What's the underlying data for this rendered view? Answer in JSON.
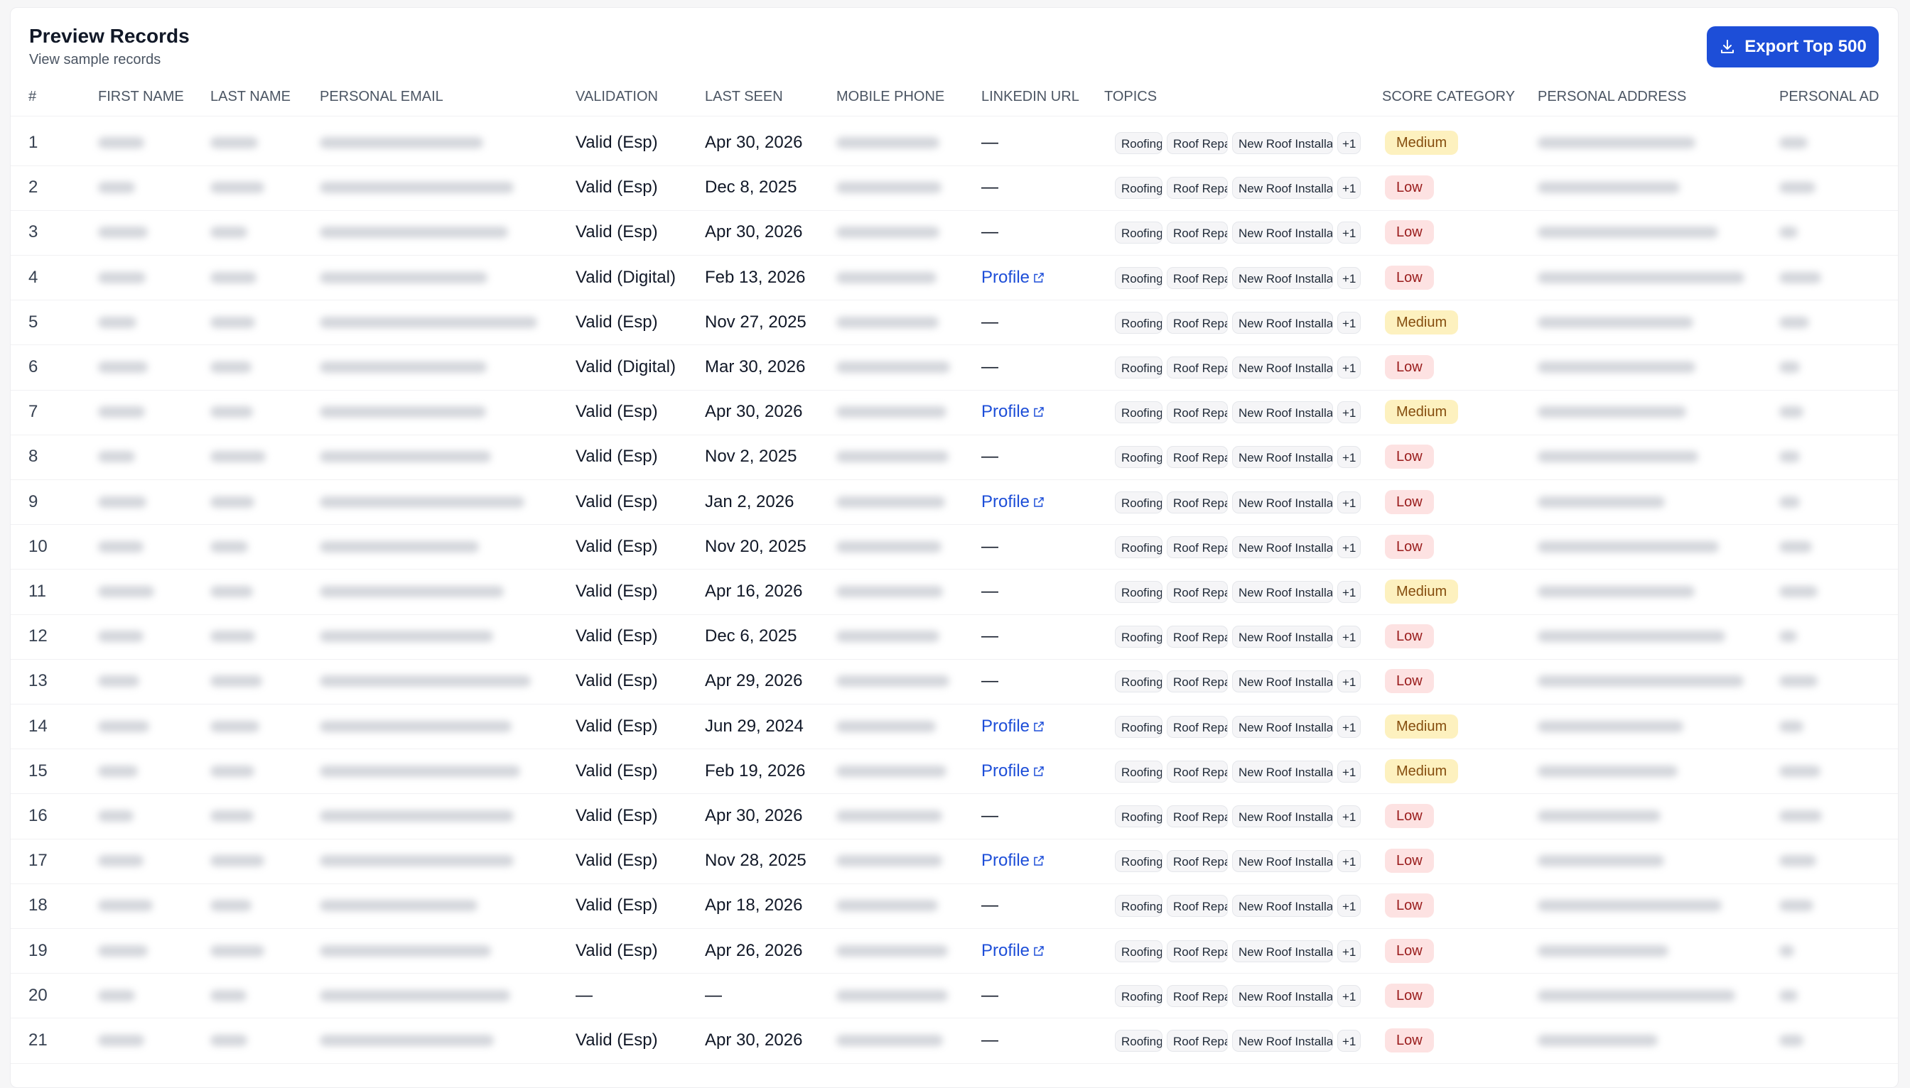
{
  "header": {
    "title": "Preview Records",
    "subtitle": "View sample records",
    "export_button": "Export Top 500"
  },
  "table": {
    "columns": [
      "#",
      "FIRST NAME",
      "LAST NAME",
      "PERSONAL EMAIL",
      "VALIDATION",
      "LAST SEEN",
      "MOBILE PHONE",
      "LINKEDIN URL",
      "TOPICS",
      "SCORE CATEGORY",
      "PERSONAL ADDRESS",
      "PERSONAL AD"
    ],
    "rows": [
      {
        "number": 1,
        "validation": "Valid (Esp)",
        "last_seen": "Apr 30, 2026",
        "linkedin": "—",
        "topics": [
          "Roofing",
          "Roof Repair",
          "New Roof Installation"
        ],
        "topics_more": "+1",
        "score": "Medium"
      },
      {
        "number": 2,
        "validation": "Valid (Esp)",
        "last_seen": "Dec 8, 2025",
        "linkedin": "—",
        "topics": [
          "Roofing",
          "Roof Repair",
          "New Roof Installation"
        ],
        "topics_more": "+1",
        "score": "Low"
      },
      {
        "number": 3,
        "validation": "Valid (Esp)",
        "last_seen": "Apr 30, 2026",
        "linkedin": "—",
        "topics": [
          "Roofing",
          "Roof Repair",
          "New Roof Installation"
        ],
        "topics_more": "+1",
        "score": "Low"
      },
      {
        "number": 4,
        "validation": "Valid (Digital)",
        "last_seen": "Feb 13, 2026",
        "linkedin": "Profile",
        "topics": [
          "Roofing",
          "Roof Repair",
          "New Roof Installation"
        ],
        "topics_more": "+1",
        "score": "Low"
      },
      {
        "number": 5,
        "validation": "Valid (Esp)",
        "last_seen": "Nov 27, 2025",
        "linkedin": "—",
        "topics": [
          "Roofing",
          "Roof Repair",
          "New Roof Installation"
        ],
        "topics_more": "+1",
        "score": "Medium"
      },
      {
        "number": 6,
        "validation": "Valid (Digital)",
        "last_seen": "Mar 30, 2026",
        "linkedin": "—",
        "topics": [
          "Roofing",
          "Roof Repair",
          "New Roof Installation"
        ],
        "topics_more": "+1",
        "score": "Low"
      },
      {
        "number": 7,
        "validation": "Valid (Esp)",
        "last_seen": "Apr 30, 2026",
        "linkedin": "Profile",
        "topics": [
          "Roofing",
          "Roof Repair",
          "New Roof Installation"
        ],
        "topics_more": "+1",
        "score": "Medium"
      },
      {
        "number": 8,
        "validation": "Valid (Esp)",
        "last_seen": "Nov 2, 2025",
        "linkedin": "—",
        "topics": [
          "Roofing",
          "Roof Repair",
          "New Roof Installation"
        ],
        "topics_more": "+1",
        "score": "Low"
      },
      {
        "number": 9,
        "validation": "Valid (Esp)",
        "last_seen": "Jan 2, 2026",
        "linkedin": "Profile",
        "topics": [
          "Roofing",
          "Roof Repair",
          "New Roof Installation"
        ],
        "topics_more": "+1",
        "score": "Low"
      },
      {
        "number": 10,
        "validation": "Valid (Esp)",
        "last_seen": "Nov 20, 2025",
        "linkedin": "—",
        "topics": [
          "Roofing",
          "Roof Repair",
          "New Roof Installation"
        ],
        "topics_more": "+1",
        "score": "Low"
      },
      {
        "number": 11,
        "validation": "Valid (Esp)",
        "last_seen": "Apr 16, 2026",
        "linkedin": "—",
        "topics": [
          "Roofing",
          "Roof Repair",
          "New Roof Installation"
        ],
        "topics_more": "+1",
        "score": "Medium"
      },
      {
        "number": 12,
        "validation": "Valid (Esp)",
        "last_seen": "Dec 6, 2025",
        "linkedin": "—",
        "topics": [
          "Roofing",
          "Roof Repair",
          "New Roof Installation"
        ],
        "topics_more": "+1",
        "score": "Low"
      },
      {
        "number": 13,
        "validation": "Valid (Esp)",
        "last_seen": "Apr 29, 2026",
        "linkedin": "—",
        "topics": [
          "Roofing",
          "Roof Repair",
          "New Roof Installation"
        ],
        "topics_more": "+1",
        "score": "Low"
      },
      {
        "number": 14,
        "validation": "Valid (Esp)",
        "last_seen": "Jun 29, 2024",
        "linkedin": "Profile",
        "topics": [
          "Roofing",
          "Roof Repair",
          "New Roof Installation"
        ],
        "topics_more": "+1",
        "score": "Medium"
      },
      {
        "number": 15,
        "validation": "Valid (Esp)",
        "last_seen": "Feb 19, 2026",
        "linkedin": "Profile",
        "topics": [
          "Roofing",
          "Roof Repair",
          "New Roof Installation"
        ],
        "topics_more": "+1",
        "score": "Medium"
      },
      {
        "number": 16,
        "validation": "Valid (Esp)",
        "last_seen": "Apr 30, 2026",
        "linkedin": "—",
        "topics": [
          "Roofing",
          "Roof Repair",
          "New Roof Installation"
        ],
        "topics_more": "+1",
        "score": "Low"
      },
      {
        "number": 17,
        "validation": "Valid (Esp)",
        "last_seen": "Nov 28, 2025",
        "linkedin": "Profile",
        "topics": [
          "Roofing",
          "Roof Repair",
          "New Roof Installation"
        ],
        "topics_more": "+1",
        "score": "Low"
      },
      {
        "number": 18,
        "validation": "Valid (Esp)",
        "last_seen": "Apr 18, 2026",
        "linkedin": "—",
        "topics": [
          "Roofing",
          "Roof Repair",
          "New Roof Installation"
        ],
        "topics_more": "+1",
        "score": "Low"
      },
      {
        "number": 19,
        "validation": "Valid (Esp)",
        "last_seen": "Apr 26, 2026",
        "linkedin": "Profile",
        "topics": [
          "Roofing",
          "Roof Repair",
          "New Roof Installation"
        ],
        "topics_more": "+1",
        "score": "Low"
      },
      {
        "number": 20,
        "validation": "—",
        "last_seen": "—",
        "linkedin": "—",
        "topics": [
          "Roofing",
          "Roof Repair",
          "New Roof Installation"
        ],
        "topics_more": "+1",
        "score": "Low"
      },
      {
        "number": 21,
        "validation": "Valid (Esp)",
        "last_seen": "Apr 30, 2026",
        "linkedin": "—",
        "topics": [
          "Roofing",
          "Roof Repair",
          "New Roof Installation"
        ],
        "topics_more": "+1",
        "score": "Low"
      }
    ]
  }
}
